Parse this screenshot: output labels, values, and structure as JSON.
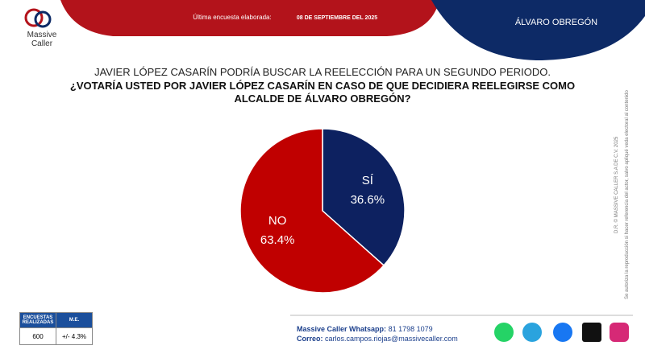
{
  "logo": {
    "line1": "Massive",
    "line2": "Caller"
  },
  "header": {
    "label": "Última encuesta elaborada:",
    "date": "08 DE SEPTIEMBRE DEL 2025",
    "region": "ÁLVARO OBREGÓN"
  },
  "chart_data": {
    "type": "pie",
    "title": "JAVIER LÓPEZ CASARÍN  PODRÍA BUSCAR LA REELECCIÓN PARA UN SEGUNDO PERIODO.",
    "subtitle": "¿VOTARÍA USTED POR JAVIER LÓPEZ CASARÍN EN CASO DE QUE DECIDIERA REELEGIRSE COMO ALCALDE DE ÁLVARO OBREGÓN?",
    "categories": [
      "SÍ",
      "NO"
    ],
    "values": [
      36.6,
      63.4
    ],
    "value_labels": [
      "36.6%",
      "63.4%"
    ],
    "colors": [
      "#0d2160",
      "#c00000"
    ]
  },
  "table": {
    "headers": [
      "ENCUESTAS REALIZADAS",
      "M.E."
    ],
    "rows": [
      [
        "600",
        "+/- 4.3%"
      ]
    ]
  },
  "contact": {
    "whatsapp_label": "Massive Caller Whatsapp:",
    "whatsapp": "81 1798 1079",
    "email_label": "Correo:",
    "email": "carlos.campos.riojas@massivecaller.com"
  },
  "legal": {
    "line1": "D.R. © MASSIVE CALLER S.A DE C.V. 2025",
    "line2": "Se autoriza la reproducción si hacer referencia del actor, salvo apliqué veda electoral al contenido"
  }
}
